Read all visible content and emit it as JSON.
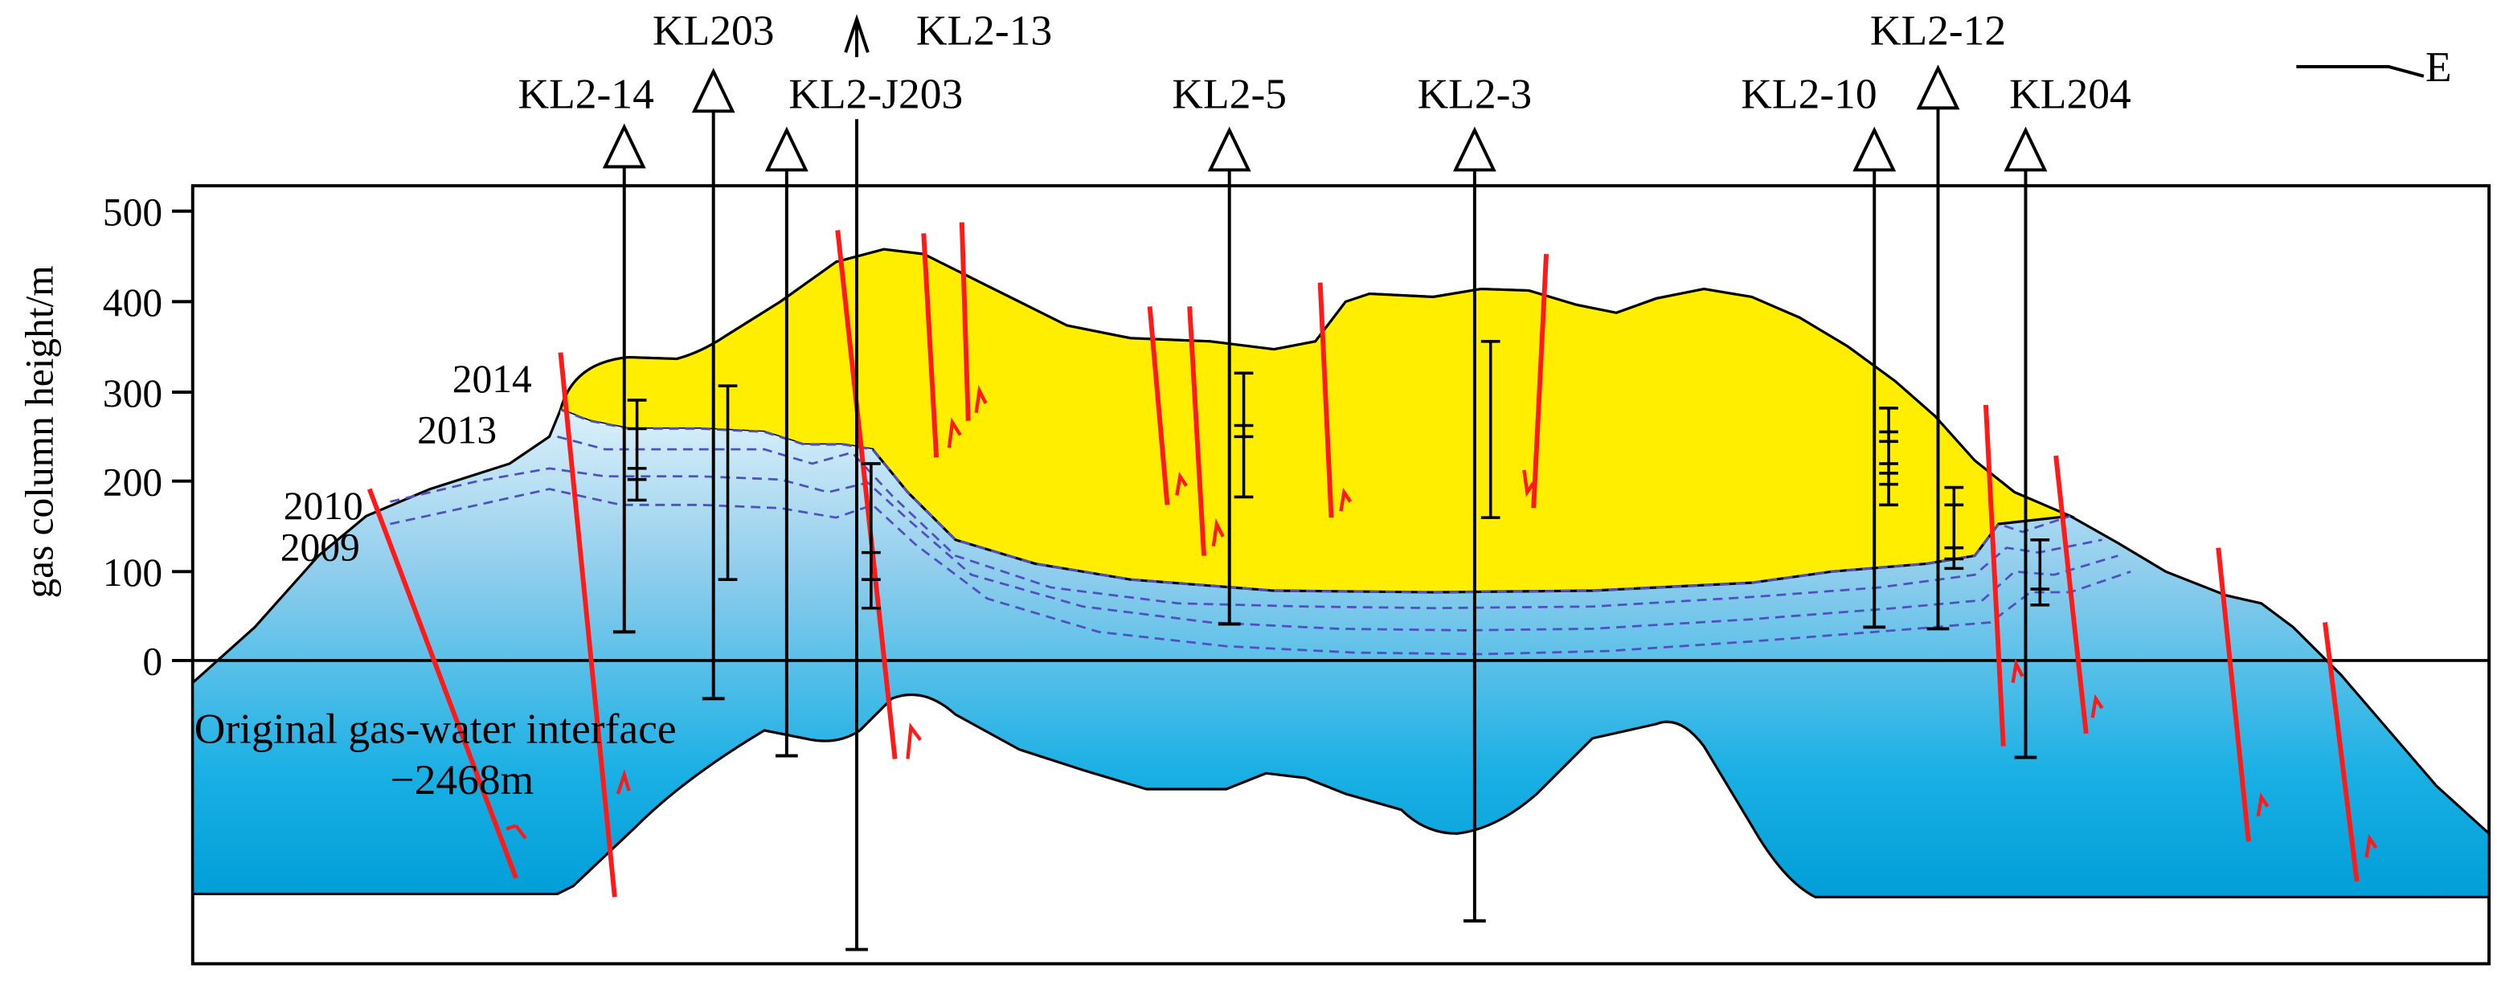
{
  "axis": {
    "ylabel": "gas column height/m",
    "ticks": [
      "500",
      "400",
      "300",
      "200",
      "100",
      "0"
    ]
  },
  "compass": {
    "direction": "E"
  },
  "years": [
    "2014",
    "2013",
    "2010",
    "2009"
  ],
  "interface": {
    "line1": "Original gas-water interface",
    "line2": "−2468m"
  },
  "wells": [
    "KL203",
    "KL2-13",
    "KL2-14",
    "KL2-J203",
    "KL2-5",
    "KL2-3",
    "KL2-12",
    "KL2-10",
    "KL204"
  ],
  "colors": {
    "gas": "#ffee00",
    "water_top": "#d6eefa",
    "water_bottom": "#00a8e0",
    "fault": "#ff1a1a",
    "water_contact": "#5050c0"
  }
}
